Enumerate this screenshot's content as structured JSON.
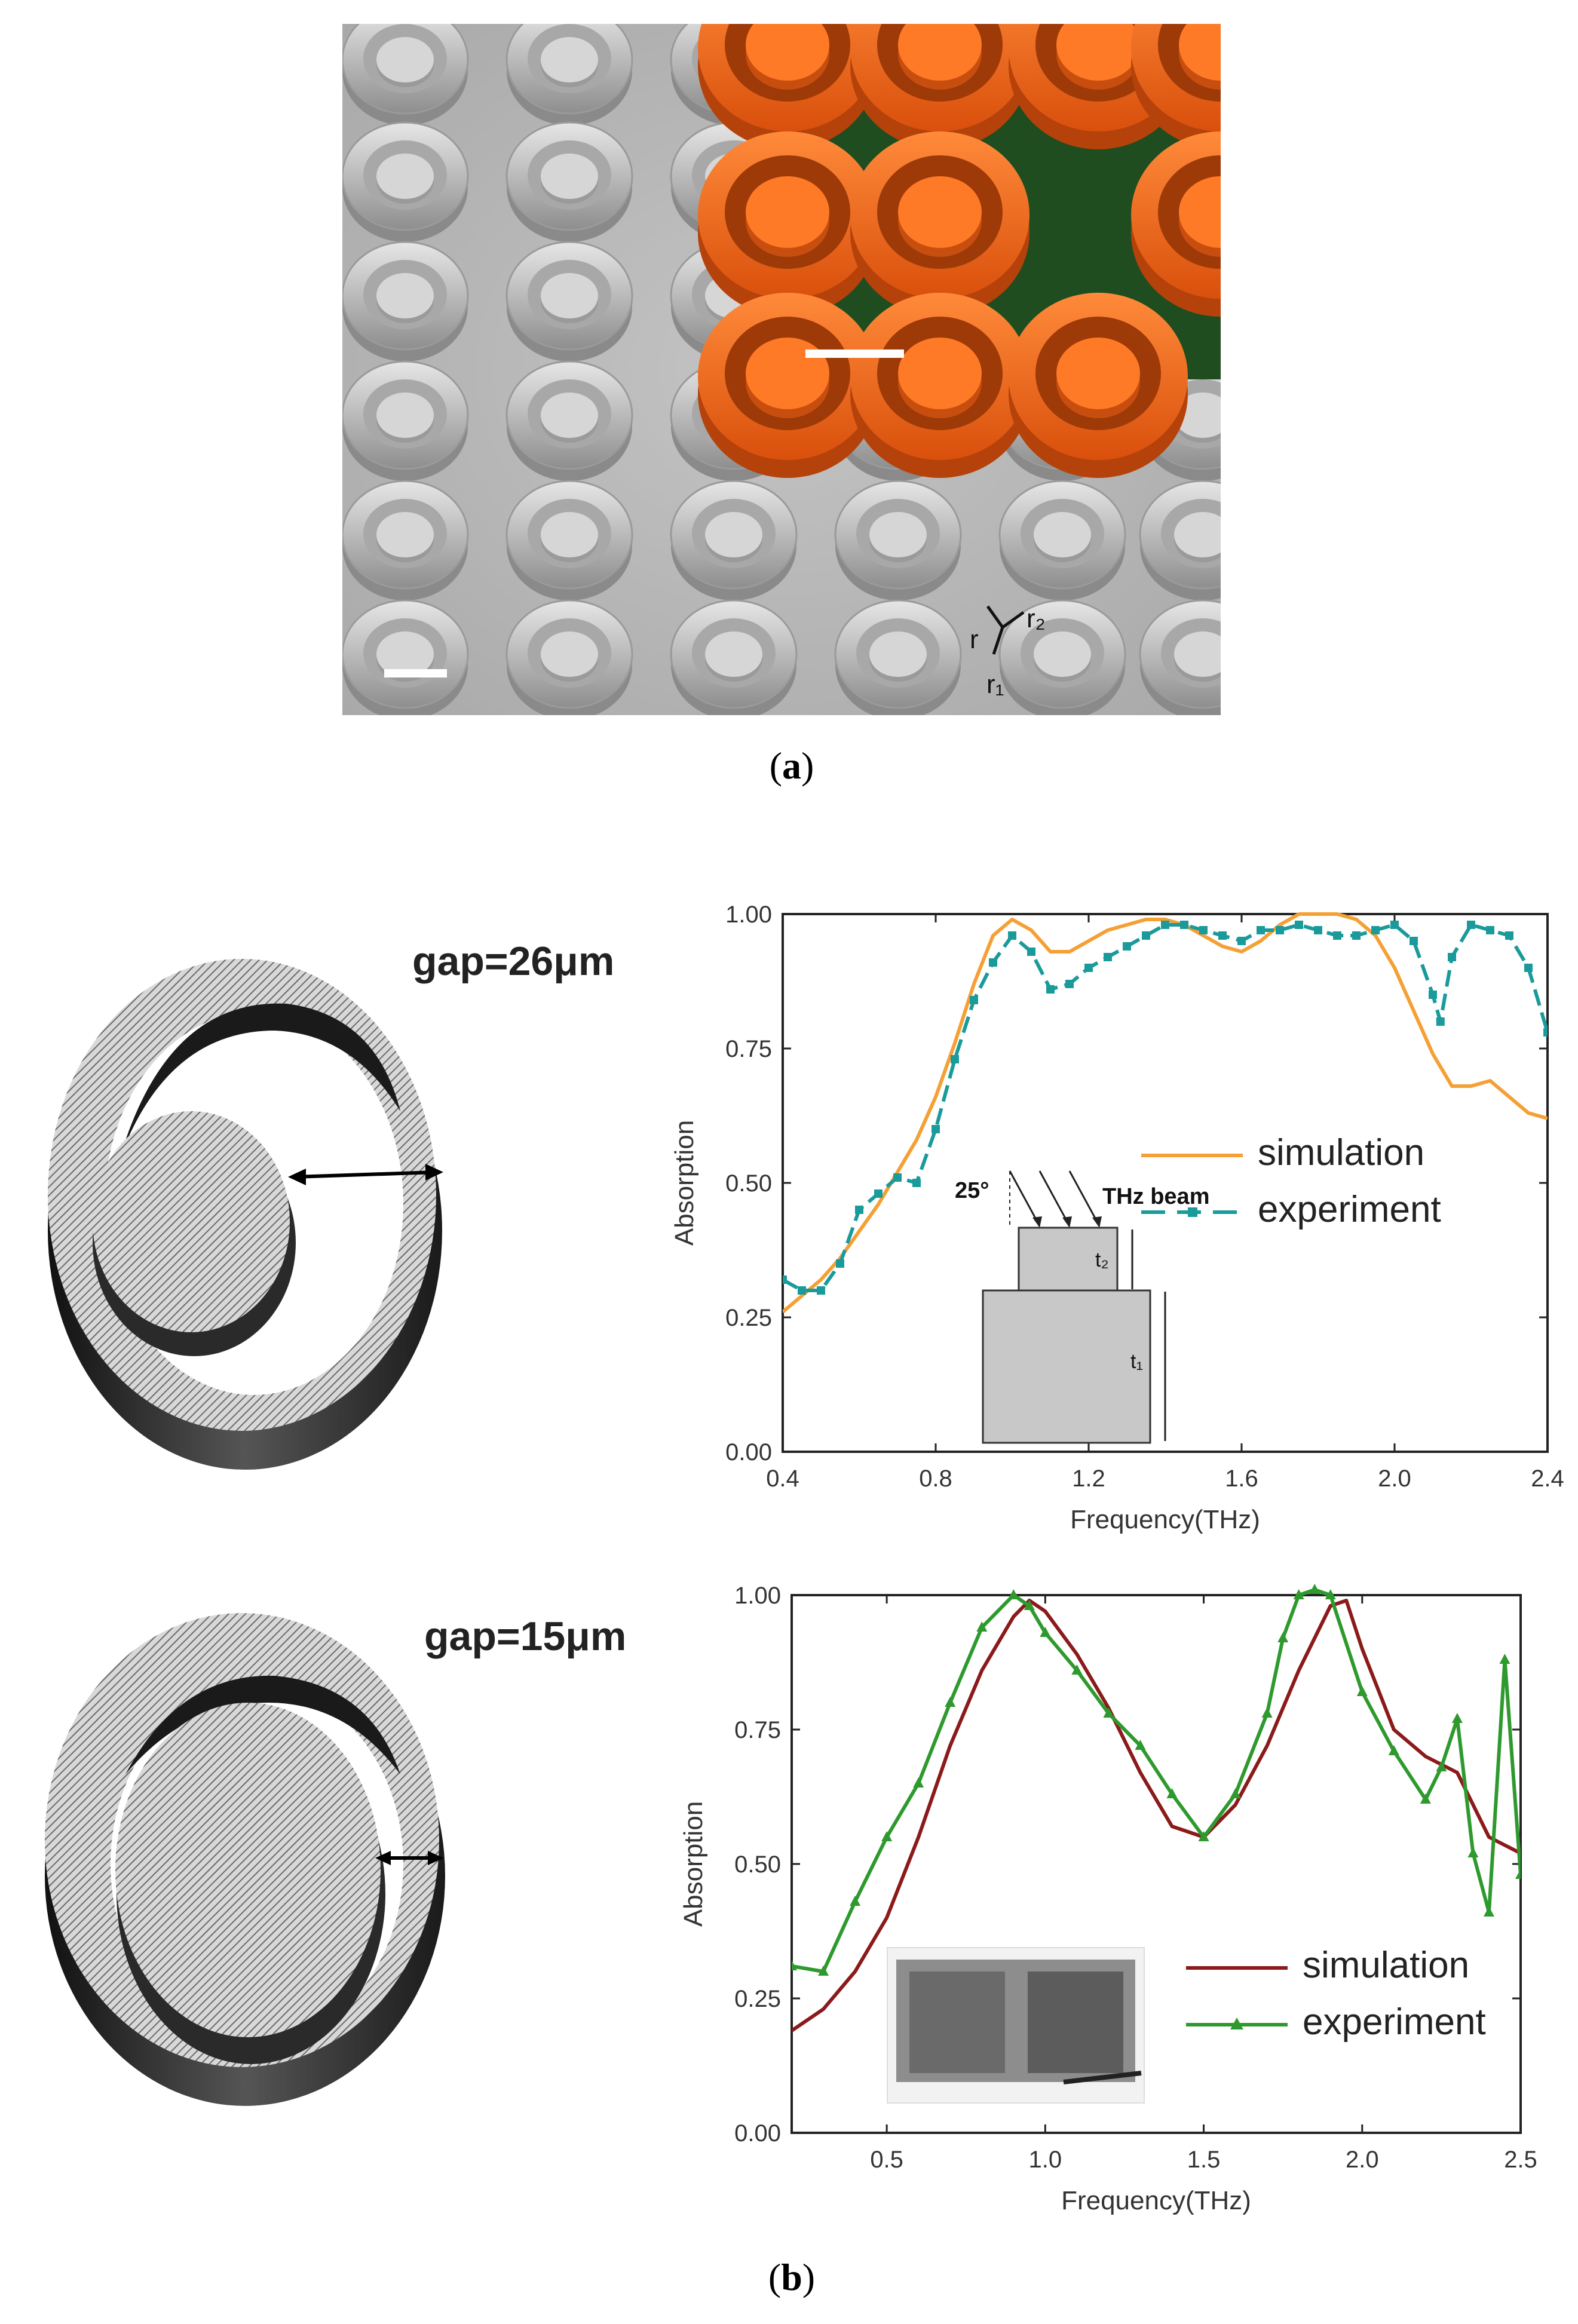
{
  "panel_a": {
    "caption_open": "(",
    "caption_letter": "a",
    "caption_close": ")",
    "annotation_r": "r",
    "annotation_r1": "r₁",
    "annotation_r2": "r₂",
    "colors": {
      "sem_bg": "#b8b8b8",
      "inset_bg": "#1f4d1f",
      "inset_ring": "#f26a1b"
    }
  },
  "panel_b": {
    "caption_open": "(",
    "caption_letter": "b",
    "caption_close": ")",
    "top_label": "gap=26μm",
    "bottom_label": "gap=15μm"
  },
  "chart_data": [
    {
      "type": "line",
      "title": "",
      "xlabel": "Frequency(THz)",
      "ylabel": "Absorption",
      "xlim": [
        0.4,
        2.4
      ],
      "ylim": [
        0.0,
        1.0
      ],
      "xticks": [
        "0.4",
        "0.8",
        "1.2",
        "1.6",
        "2.0",
        "2.4"
      ],
      "yticks": [
        "0.00",
        "0.25",
        "0.50",
        "0.75",
        "1.00"
      ],
      "legend_position": "center-right",
      "series": [
        {
          "name": "simulation",
          "color": "#f5a035",
          "style": "solid",
          "x": [
            0.4,
            0.45,
            0.5,
            0.55,
            0.6,
            0.65,
            0.7,
            0.75,
            0.8,
            0.85,
            0.9,
            0.95,
            1.0,
            1.05,
            1.1,
            1.15,
            1.2,
            1.25,
            1.3,
            1.35,
            1.4,
            1.45,
            1.5,
            1.55,
            1.6,
            1.65,
            1.7,
            1.75,
            1.8,
            1.85,
            1.9,
            1.95,
            2.0,
            2.05,
            2.1,
            2.15,
            2.2,
            2.25,
            2.3,
            2.35,
            2.4
          ],
          "y": [
            0.26,
            0.29,
            0.32,
            0.36,
            0.41,
            0.46,
            0.52,
            0.58,
            0.66,
            0.76,
            0.87,
            0.96,
            0.99,
            0.97,
            0.93,
            0.93,
            0.95,
            0.97,
            0.98,
            0.99,
            0.99,
            0.98,
            0.96,
            0.94,
            0.93,
            0.95,
            0.98,
            1.0,
            1.0,
            1.0,
            0.99,
            0.96,
            0.9,
            0.82,
            0.74,
            0.68,
            0.68,
            0.69,
            0.66,
            0.63,
            0.62
          ]
        },
        {
          "name": "experiment",
          "color": "#1a9a9a",
          "style": "dashed-marker",
          "x": [
            0.4,
            0.45,
            0.5,
            0.55,
            0.6,
            0.65,
            0.7,
            0.75,
            0.8,
            0.85,
            0.9,
            0.95,
            1.0,
            1.05,
            1.1,
            1.15,
            1.2,
            1.25,
            1.3,
            1.35,
            1.4,
            1.45,
            1.5,
            1.55,
            1.6,
            1.65,
            1.7,
            1.75,
            1.8,
            1.85,
            1.9,
            1.95,
            2.0,
            2.05,
            2.1,
            2.12,
            2.15,
            2.2,
            2.25,
            2.3,
            2.35,
            2.4
          ],
          "y": [
            0.32,
            0.3,
            0.3,
            0.35,
            0.45,
            0.48,
            0.51,
            0.5,
            0.6,
            0.73,
            0.84,
            0.91,
            0.96,
            0.93,
            0.86,
            0.87,
            0.9,
            0.92,
            0.94,
            0.96,
            0.98,
            0.98,
            0.97,
            0.96,
            0.95,
            0.97,
            0.97,
            0.98,
            0.97,
            0.96,
            0.96,
            0.97,
            0.98,
            0.95,
            0.85,
            0.8,
            0.92,
            0.98,
            0.97,
            0.96,
            0.9,
            0.78
          ]
        }
      ],
      "inset": {
        "angle_label": "25°",
        "beam_label": "THz beam",
        "t1_label": "t₁",
        "t2_label": "t₂"
      }
    },
    {
      "type": "line",
      "title": "",
      "xlabel": "Frequency(THz)",
      "ylabel": "Absorption",
      "xlim": [
        0.2,
        2.5
      ],
      "ylim": [
        0.0,
        1.0
      ],
      "xticks": [
        "0.5",
        "1.0",
        "1.5",
        "2.0",
        "2.5"
      ],
      "yticks": [
        "0.00",
        "0.25",
        "0.50",
        "0.75",
        "1.00"
      ],
      "legend_position": "bottom-right",
      "series": [
        {
          "name": "simulation",
          "color": "#8b1a1a",
          "style": "solid",
          "x": [
            0.2,
            0.3,
            0.4,
            0.5,
            0.6,
            0.7,
            0.8,
            0.9,
            0.95,
            1.0,
            1.1,
            1.2,
            1.3,
            1.4,
            1.5,
            1.6,
            1.7,
            1.8,
            1.9,
            1.95,
            2.0,
            2.1,
            2.2,
            2.3,
            2.4,
            2.5
          ],
          "y": [
            0.19,
            0.23,
            0.3,
            0.4,
            0.55,
            0.72,
            0.86,
            0.96,
            0.99,
            0.97,
            0.89,
            0.79,
            0.67,
            0.57,
            0.55,
            0.61,
            0.72,
            0.86,
            0.98,
            0.99,
            0.9,
            0.75,
            0.7,
            0.67,
            0.55,
            0.52
          ]
        },
        {
          "name": "experiment",
          "color": "#2e9a2e",
          "style": "solid-marker",
          "x": [
            0.2,
            0.3,
            0.4,
            0.5,
            0.6,
            0.7,
            0.8,
            0.9,
            0.95,
            1.0,
            1.1,
            1.2,
            1.3,
            1.4,
            1.5,
            1.6,
            1.7,
            1.75,
            1.8,
            1.85,
            1.9,
            2.0,
            2.1,
            2.2,
            2.25,
            2.3,
            2.35,
            2.4,
            2.45,
            2.5
          ],
          "y": [
            0.31,
            0.3,
            0.43,
            0.55,
            0.65,
            0.8,
            0.94,
            1.0,
            0.98,
            0.93,
            0.86,
            0.78,
            0.72,
            0.63,
            0.55,
            0.63,
            0.78,
            0.92,
            1.0,
            1.01,
            1.0,
            0.82,
            0.71,
            0.62,
            0.68,
            0.77,
            0.52,
            0.41,
            0.88,
            0.48
          ]
        }
      ]
    }
  ]
}
